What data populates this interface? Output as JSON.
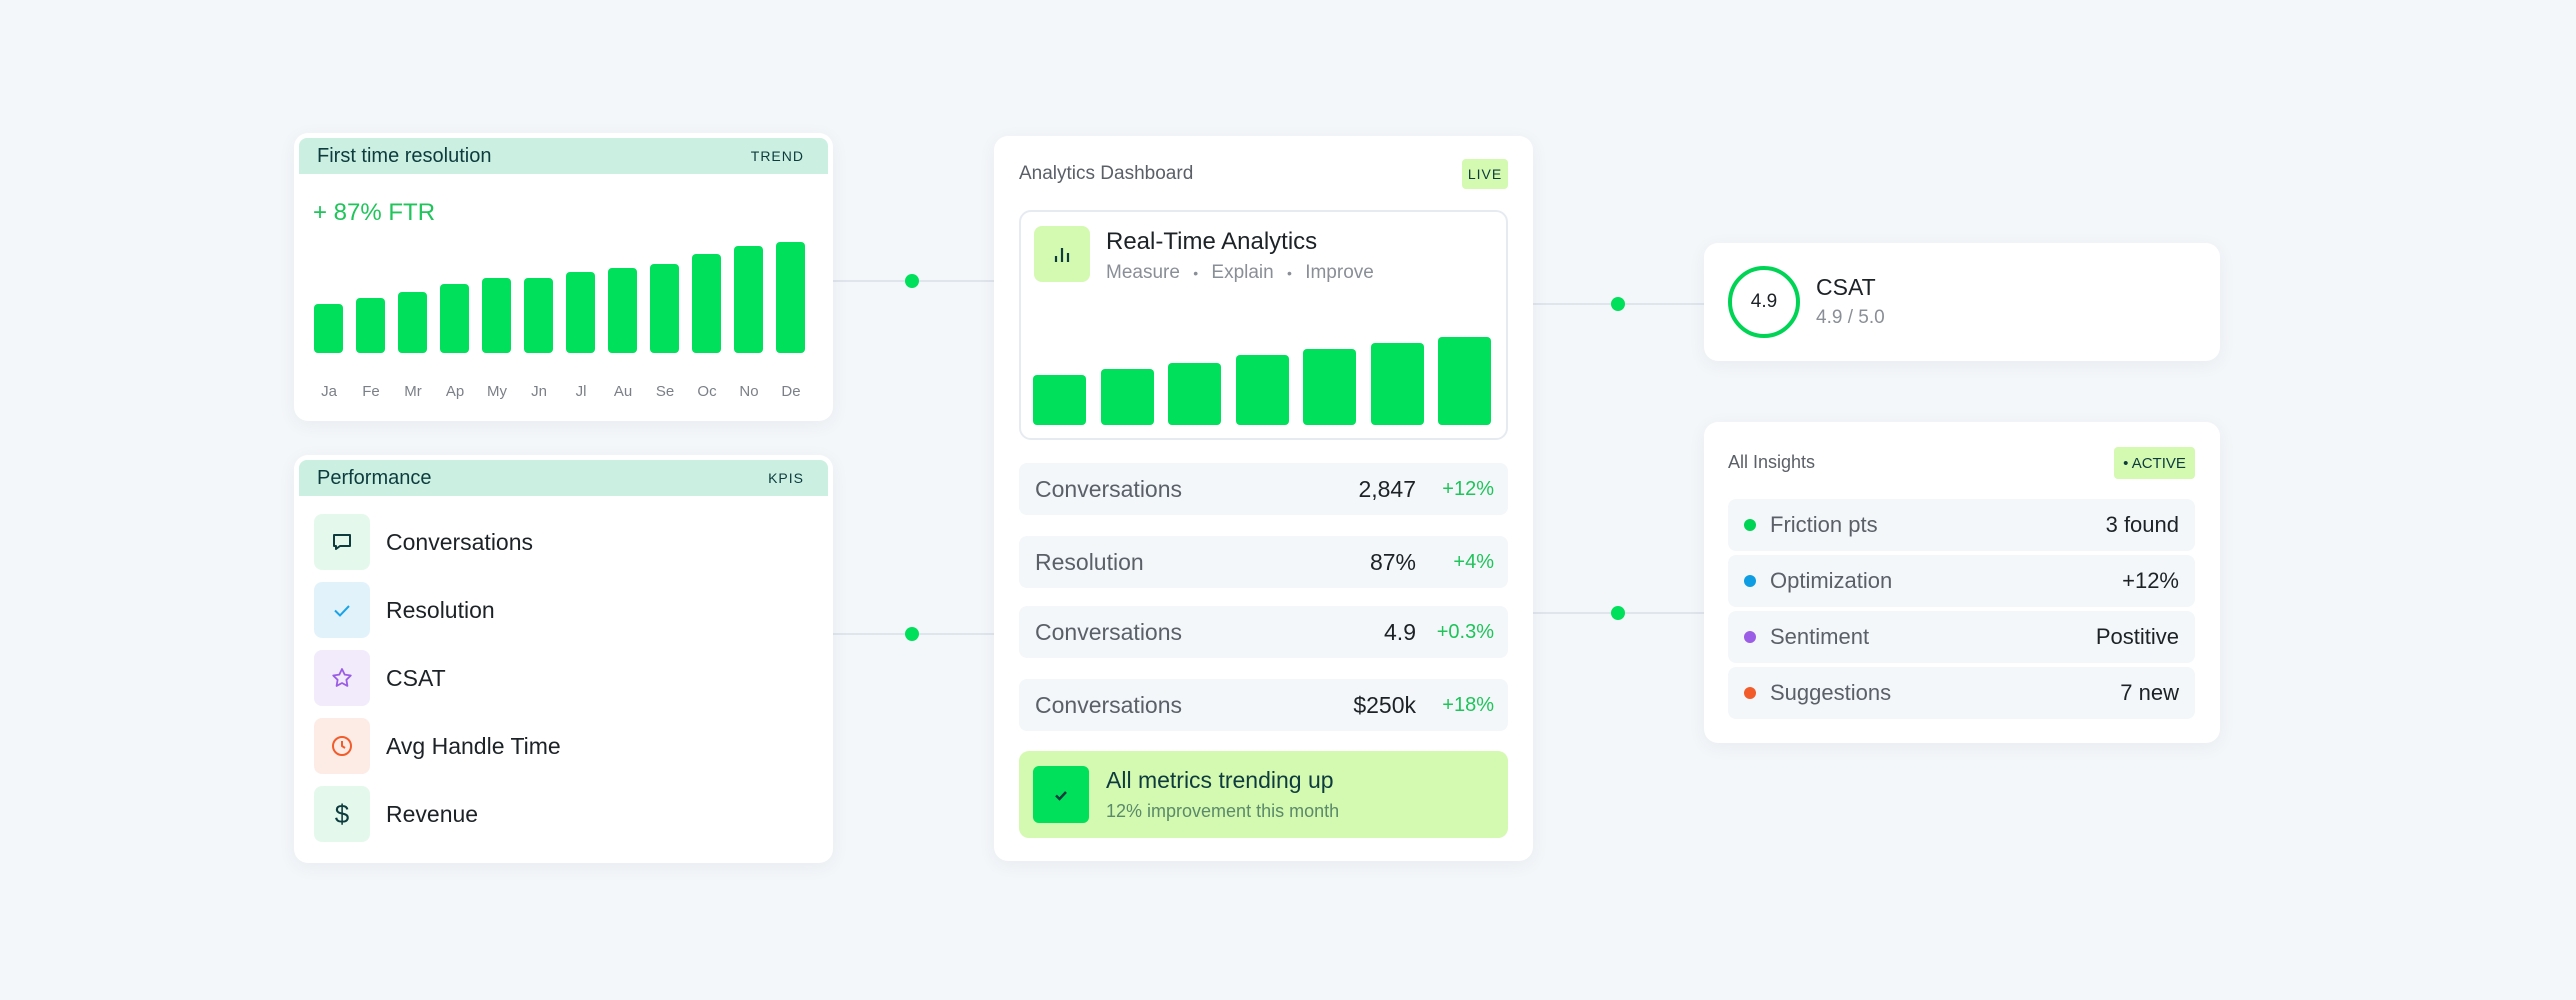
{
  "ftr_card": {
    "title": "First time resolution",
    "tag": "TREND",
    "headline": "+ 87% FTR",
    "chart_data": {
      "type": "bar",
      "categories": [
        "Ja",
        "Fe",
        "Mr",
        "Ap",
        "My",
        "Jn",
        "Jl",
        "Au",
        "Se",
        "Oc",
        "No",
        "De"
      ],
      "values": [
        44,
        50,
        55,
        62,
        68,
        68,
        73,
        77,
        80,
        89,
        96,
        100
      ],
      "color": "#00e05a"
    }
  },
  "performance_card": {
    "title": "Performance",
    "tag": "KPIS",
    "items": [
      {
        "label": "Conversations",
        "icon": "chat-bubble-icon",
        "bg": "#e4f9ec",
        "color": "#0d3b3e"
      },
      {
        "label": "Resolution",
        "icon": "check-icon",
        "bg": "#e2f2fb",
        "color": "#1aa3e8"
      },
      {
        "label": "CSAT",
        "icon": "star-icon",
        "bg": "#f1ebfb",
        "color": "#9b5de5"
      },
      {
        "label": "Avg Handle Time",
        "icon": "clock-icon",
        "bg": "#fdece6",
        "color": "#f25c2a"
      },
      {
        "label": "Revenue",
        "icon": "dollar-icon",
        "bg": "#e4f9ec",
        "color": "#0d3b3e"
      }
    ]
  },
  "dashboard": {
    "title": "Analytics Dashboard",
    "badge": "LIVE",
    "panel": {
      "title": "Real-Time Analytics",
      "subtitle": [
        "Measure",
        "Explain",
        "Improve"
      ],
      "separator": "•",
      "icon": "bar-chart-icon",
      "chart_data": {
        "type": "bar",
        "values": [
          57,
          64,
          70,
          79,
          86,
          93,
          100
        ],
        "color": "#00e05a"
      }
    },
    "metrics": [
      {
        "label": "Conversations",
        "value": "2,847",
        "change": "+12%"
      },
      {
        "label": "Resolution",
        "value": "87%",
        "change": "+4%"
      },
      {
        "label": "Conversations",
        "value": "4.9",
        "change": "+0.3%"
      },
      {
        "label": "Conversations",
        "value": "$250k",
        "change": "+18%"
      }
    ],
    "banner": {
      "title": "All metrics trending up",
      "subtitle": "12% improvement this month",
      "icon": "check-icon"
    }
  },
  "csat_card": {
    "score": "4.9",
    "title": "CSAT",
    "subtitle": "4.9 / 5.0",
    "fraction": 0.98
  },
  "insights": {
    "title": "All Insights",
    "badge": "• ACTIVE",
    "items": [
      {
        "label": "Friction pts",
        "value": "3 found",
        "color": "#00d455"
      },
      {
        "label": "Optimization",
        "value": "+12%",
        "color": "#0e9de3"
      },
      {
        "label": "Sentiment",
        "value": "Postitive",
        "color": "#9b5de5"
      },
      {
        "label": "Suggestions",
        "value": "7 new",
        "color": "#f25c2a"
      }
    ]
  },
  "colors": {
    "accent": "#00e05a",
    "header": "#cbf0e2",
    "badge": "#d4f9b0",
    "text_dark": "#0d3b3e",
    "background": "#f4f7fa"
  }
}
